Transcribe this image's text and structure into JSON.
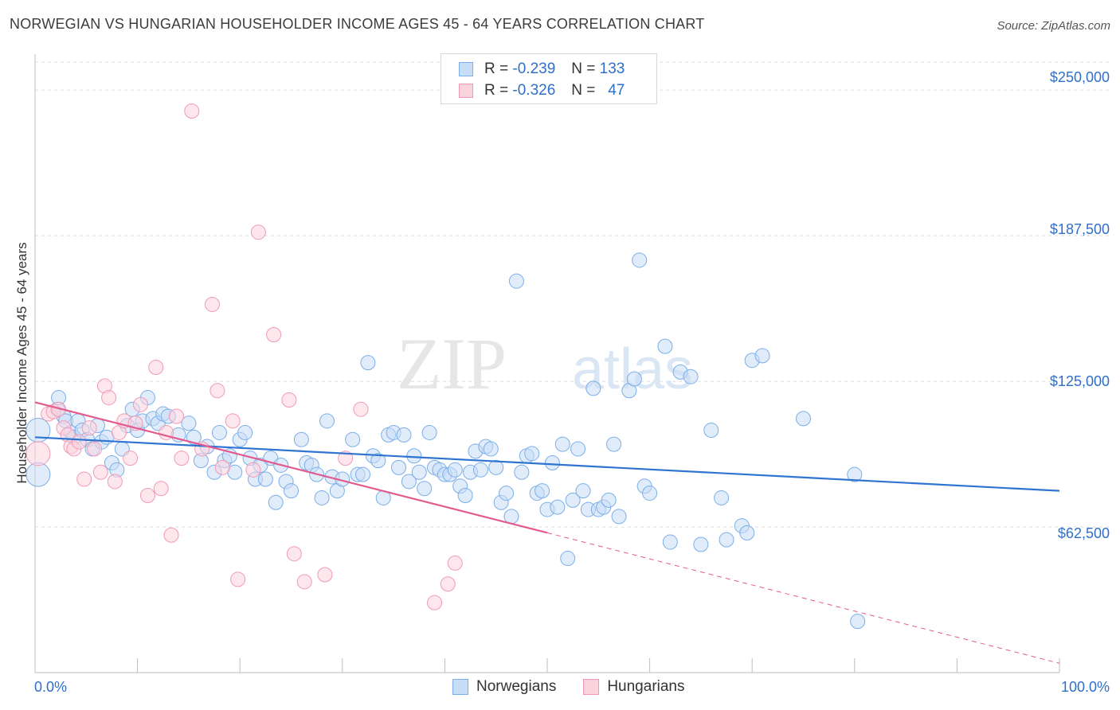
{
  "header": {
    "title": "NORWEGIAN VS HUNGARIAN HOUSEHOLDER INCOME AGES 45 - 64 YEARS CORRELATION CHART",
    "source": "Source: ZipAtlas.com"
  },
  "watermark": {
    "part1": "ZIP",
    "part2": "atlas"
  },
  "legend": {
    "r_label": "R =",
    "n_label": "N =",
    "rows": [
      {
        "r": "-0.239",
        "n": "133"
      },
      {
        "r": "-0.326",
        "n": "47"
      }
    ]
  },
  "colors": {
    "norwegians": "#7aaee8",
    "norwegians_fill": "#c8ddf6",
    "norwegians_line": "#2f74d0",
    "hungarians": "#f09ab5",
    "hungarians_fill": "#fbd3df",
    "hungarians_line": "#e25b8f",
    "axis_text": "#2f6fc9"
  },
  "chart_data": {
    "type": "scatter",
    "title": "NORWEGIAN VS HUNGARIAN HOUSEHOLDER INCOME AGES 45 - 64 YEARS CORRELATION CHART",
    "xlabel": "",
    "ylabel": "Householder Income Ages 45 - 64 years",
    "xlim": [
      0,
      100
    ],
    "ylim": [
      0,
      262000
    ],
    "x_tick_labels": [
      "0.0%",
      "100.0%"
    ],
    "y_tick_values": [
      62500,
      125000,
      187500,
      250000
    ],
    "y_tick_labels": [
      "$62,500",
      "$125,000",
      "$187,500",
      "$250,000"
    ],
    "grid": true,
    "legend_position": "top-center",
    "series": [
      {
        "name": "Norwegians",
        "r": -0.239,
        "n": 133,
        "trend": {
          "x": [
            0,
            100
          ],
          "y": [
            101000,
            78000
          ],
          "dashed_after": null
        },
        "points": [
          [
            0.3,
            104000,
            14
          ],
          [
            0.3,
            85000,
            14
          ],
          [
            2.2,
            113000,
            8
          ],
          [
            2.3,
            118000,
            8
          ],
          [
            2.8,
            110000,
            8
          ],
          [
            3,
            108000,
            8
          ],
          [
            3.5,
            103000,
            8
          ],
          [
            3.8,
            101000,
            8
          ],
          [
            4.2,
            108000,
            8
          ],
          [
            4.6,
            104000,
            8
          ],
          [
            5.1,
            100000,
            8
          ],
          [
            5.6,
            96000,
            8
          ],
          [
            6.1,
            106000,
            8
          ],
          [
            6.5,
            99000,
            8
          ],
          [
            7,
            101000,
            8
          ],
          [
            7.5,
            90000,
            8
          ],
          [
            8,
            87000,
            8
          ],
          [
            8.5,
            96000,
            8
          ],
          [
            9,
            106000,
            8
          ],
          [
            9.5,
            113000,
            8
          ],
          [
            10,
            104000,
            8
          ],
          [
            10.5,
            108000,
            8
          ],
          [
            11,
            118000,
            8
          ],
          [
            11.5,
            109000,
            8
          ],
          [
            12,
            107000,
            8
          ],
          [
            12.5,
            111000,
            8
          ],
          [
            13,
            110000,
            8
          ],
          [
            14,
            102000,
            8
          ],
          [
            15,
            107000,
            8
          ],
          [
            15.5,
            101000,
            8
          ],
          [
            16.2,
            91000,
            8
          ],
          [
            16.8,
            97000,
            8
          ],
          [
            17.5,
            86000,
            8
          ],
          [
            18,
            103000,
            8
          ],
          [
            18.5,
            91000,
            8
          ],
          [
            19,
            93000,
            8
          ],
          [
            19.5,
            86000,
            8
          ],
          [
            20,
            100000,
            8
          ],
          [
            20.5,
            103000,
            8
          ],
          [
            21,
            92000,
            8
          ],
          [
            21.5,
            83000,
            8
          ],
          [
            22,
            89000,
            8
          ],
          [
            22.5,
            83000,
            8
          ],
          [
            23,
            92000,
            8
          ],
          [
            23.5,
            73000,
            8
          ],
          [
            24,
            89000,
            8
          ],
          [
            24.5,
            82000,
            8
          ],
          [
            25,
            78000,
            8
          ],
          [
            26,
            100000,
            8
          ],
          [
            26.5,
            90000,
            8
          ],
          [
            27,
            89000,
            8
          ],
          [
            27.5,
            85000,
            8
          ],
          [
            28,
            75000,
            8
          ],
          [
            28.5,
            108000,
            8
          ],
          [
            29,
            84000,
            8
          ],
          [
            29.5,
            78000,
            8
          ],
          [
            30,
            83000,
            8
          ],
          [
            31,
            100000,
            8
          ],
          [
            31.5,
            85000,
            8
          ],
          [
            32,
            85000,
            8
          ],
          [
            32.5,
            133000,
            8
          ],
          [
            33,
            93000,
            8
          ],
          [
            33.5,
            91000,
            8
          ],
          [
            34,
            75000,
            8
          ],
          [
            34.5,
            102000,
            8
          ],
          [
            35,
            103000,
            8
          ],
          [
            35.5,
            88000,
            8
          ],
          [
            36,
            102000,
            8
          ],
          [
            36.5,
            82000,
            8
          ],
          [
            37,
            93000,
            8
          ],
          [
            37.5,
            86000,
            8
          ],
          [
            38,
            79000,
            8
          ],
          [
            38.5,
            103000,
            8
          ],
          [
            39,
            88000,
            8
          ],
          [
            39.5,
            87000,
            8
          ],
          [
            40,
            85000,
            8
          ],
          [
            40.5,
            85000,
            8
          ],
          [
            41,
            87000,
            8
          ],
          [
            41.5,
            80000,
            8
          ],
          [
            42,
            76000,
            8
          ],
          [
            42.5,
            86000,
            8
          ],
          [
            43,
            95000,
            8
          ],
          [
            43.5,
            87000,
            8
          ],
          [
            44,
            97000,
            8
          ],
          [
            44.5,
            96000,
            8
          ],
          [
            45,
            88000,
            8
          ],
          [
            45.5,
            73000,
            8
          ],
          [
            46,
            77000,
            8
          ],
          [
            46.5,
            67000,
            8
          ],
          [
            47,
            168000,
            8
          ],
          [
            47.5,
            86000,
            8
          ],
          [
            48,
            93000,
            8
          ],
          [
            48.5,
            94000,
            8
          ],
          [
            49,
            77000,
            8
          ],
          [
            49.5,
            78000,
            8
          ],
          [
            50,
            70000,
            8
          ],
          [
            50.5,
            90000,
            8
          ],
          [
            51,
            71000,
            8
          ],
          [
            51.5,
            98000,
            8
          ],
          [
            52,
            49000,
            8
          ],
          [
            52.5,
            74000,
            8
          ],
          [
            53,
            96000,
            8
          ],
          [
            53.5,
            78000,
            8
          ],
          [
            54,
            70000,
            8
          ],
          [
            54.5,
            122000,
            8
          ],
          [
            55,
            70000,
            8
          ],
          [
            55.5,
            71000,
            8
          ],
          [
            56,
            74000,
            8
          ],
          [
            56.5,
            98000,
            8
          ],
          [
            57,
            67000,
            8
          ],
          [
            58,
            121000,
            8
          ],
          [
            58.5,
            126000,
            8
          ],
          [
            59,
            177000,
            8
          ],
          [
            59.5,
            80000,
            8
          ],
          [
            60,
            77000,
            8
          ],
          [
            61.5,
            140000,
            8
          ],
          [
            62,
            56000,
            8
          ],
          [
            63,
            129000,
            8
          ],
          [
            64,
            127000,
            8
          ],
          [
            65,
            55000,
            8
          ],
          [
            66,
            104000,
            8
          ],
          [
            67,
            75000,
            8
          ],
          [
            67.5,
            57000,
            8
          ],
          [
            69,
            63000,
            8
          ],
          [
            69.5,
            60000,
            8
          ],
          [
            70,
            134000,
            8
          ],
          [
            71,
            136000,
            8
          ],
          [
            75,
            109000,
            8
          ],
          [
            80,
            85000,
            8
          ],
          [
            80.3,
            22000,
            8
          ]
        ]
      },
      {
        "name": "Hungarians",
        "r": -0.326,
        "n": 47,
        "trend": {
          "x": [
            0,
            100
          ],
          "y": [
            116000,
            4000
          ],
          "dashed_after": 50
        },
        "points": [
          [
            0.3,
            94000,
            14
          ],
          [
            1.3,
            111000,
            8
          ],
          [
            1.8,
            112000,
            8
          ],
          [
            2.3,
            113000,
            8
          ],
          [
            2.8,
            105000,
            8
          ],
          [
            3.2,
            102000,
            8
          ],
          [
            3.5,
            97000,
            8
          ],
          [
            3.8,
            96000,
            8
          ],
          [
            4.3,
            99000,
            8
          ],
          [
            4.8,
            83000,
            8
          ],
          [
            5.3,
            105000,
            8
          ],
          [
            5.8,
            96000,
            8
          ],
          [
            6.4,
            86000,
            8
          ],
          [
            6.8,
            123000,
            8
          ],
          [
            7.2,
            118000,
            8
          ],
          [
            7.8,
            82000,
            8
          ],
          [
            8.2,
            103000,
            8
          ],
          [
            8.7,
            108000,
            8
          ],
          [
            9.3,
            92000,
            8
          ],
          [
            9.8,
            107000,
            8
          ],
          [
            10.3,
            115000,
            8
          ],
          [
            11,
            76000,
            8
          ],
          [
            11.8,
            131000,
            8
          ],
          [
            12.3,
            79000,
            8
          ],
          [
            12.8,
            103000,
            8
          ],
          [
            13.3,
            59000,
            8
          ],
          [
            13.8,
            110000,
            8
          ],
          [
            14.3,
            92000,
            8
          ],
          [
            15.3,
            241000,
            8
          ],
          [
            16.3,
            96000,
            8
          ],
          [
            17.3,
            158000,
            8
          ],
          [
            17.8,
            121000,
            8
          ],
          [
            18.3,
            88000,
            8
          ],
          [
            19.3,
            108000,
            8
          ],
          [
            19.8,
            40000,
            8
          ],
          [
            21.3,
            87000,
            8
          ],
          [
            21.8,
            189000,
            8
          ],
          [
            23.3,
            145000,
            8
          ],
          [
            24.8,
            117000,
            8
          ],
          [
            25.3,
            51000,
            8
          ],
          [
            26.3,
            39000,
            8
          ],
          [
            28.3,
            42000,
            8
          ],
          [
            30.3,
            92000,
            8
          ],
          [
            31.8,
            113000,
            8
          ],
          [
            39,
            30000,
            8
          ],
          [
            40.3,
            38000,
            8
          ],
          [
            41,
            47000,
            8
          ]
        ]
      }
    ]
  },
  "bottom_legend": {
    "items": [
      {
        "label": "Norwegians"
      },
      {
        "label": "Hungarians"
      }
    ]
  }
}
